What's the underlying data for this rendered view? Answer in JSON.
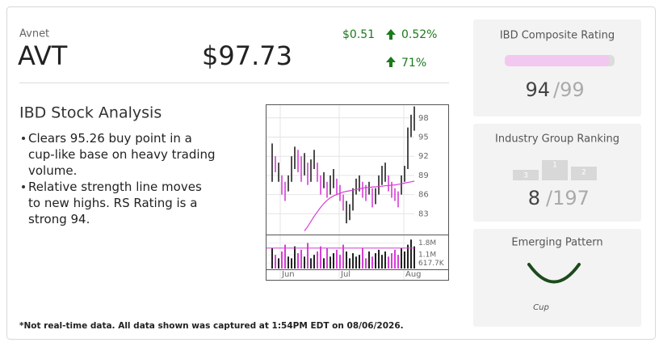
{
  "header": {
    "company": "Avnet",
    "ticker": "AVT",
    "price": "$97.73",
    "change": "$0.51",
    "change_pct": "0.52%",
    "second_pct": "71%"
  },
  "analysis": {
    "title": "IBD Stock Analysis",
    "bullets": [
      "Clears 95.26 buy point in a cup-like base on heavy trading volume.",
      "Relative strength line moves to new highs. RS Rating is a strong 94."
    ]
  },
  "footnote": "*Not real-time data. All data shown was captured at 1:54PM EDT on 08/06/2026.",
  "composite": {
    "title": "IBD Composite Rating",
    "rating": 94,
    "scale": {
      "value": 99,
      "label": "/99"
    }
  },
  "group": {
    "title": "Industry Group Ranking",
    "rank": 8,
    "scale": {
      "value": 197,
      "label": "/197"
    },
    "podium": [
      "3",
      "1",
      "2"
    ]
  },
  "pattern": {
    "title": "Emerging Pattern",
    "name": "Cup"
  },
  "chart_data": {
    "type": "price-volume",
    "up_color": "#222222",
    "down_color": "#d63fd6",
    "ma_color": "#d63fd6",
    "ylim": [
      80,
      100
    ],
    "yticks": [
      98,
      95,
      92,
      89,
      86,
      83
    ],
    "low": [
      88,
      89.5,
      88,
      86,
      85,
      86.5,
      88,
      90,
      89.5,
      88,
      89,
      87.5,
      88,
      90,
      88,
      86,
      87,
      85.5,
      86,
      87,
      86,
      85,
      83.5,
      81.5,
      82,
      83.5,
      86,
      86.5,
      85.5,
      85,
      86,
      84,
      84.5,
      86,
      87.5,
      88,
      86.5,
      85.5,
      85,
      84,
      86,
      88,
      90,
      95,
      96
    ],
    "high": [
      94,
      92,
      91,
      89,
      88,
      89,
      92,
      93.5,
      93,
      92,
      92.5,
      91,
      91.5,
      93,
      91,
      89,
      89.5,
      88,
      89,
      90,
      88.5,
      87.5,
      86,
      85,
      84.5,
      87,
      88.5,
      89,
      88,
      87.5,
      88,
      87,
      87,
      89,
      90.5,
      91,
      89,
      88,
      87,
      86.5,
      89,
      90.5,
      96.5,
      98.5,
      99.8
    ],
    "up": [
      true,
      false,
      true,
      false,
      false,
      true,
      true,
      true,
      false,
      false,
      true,
      false,
      true,
      true,
      false,
      false,
      true,
      false,
      true,
      true,
      false,
      false,
      false,
      true,
      true,
      true,
      true,
      true,
      false,
      false,
      true,
      false,
      true,
      true,
      true,
      true,
      false,
      false,
      false,
      false,
      true,
      true,
      true,
      true,
      true
    ],
    "ma": [
      null,
      null,
      null,
      null,
      null,
      null,
      null,
      null,
      null,
      null,
      80.3,
      81,
      81.8,
      82.6,
      83.3,
      84,
      84.6,
      85.1,
      85.5,
      85.8,
      86,
      86.2,
      86.4,
      86.5,
      86.6,
      86.7,
      86.8,
      86.9,
      87,
      87.1,
      87.1,
      87.2,
      87.2,
      87.3,
      87.3,
      87.4,
      87.4,
      87.5,
      87.5,
      87.6,
      87.7,
      87.8,
      87.9,
      88,
      88.1
    ],
    "volume_ylim": [
      300000,
      2200000
    ],
    "volume_ticks": [
      {
        "value": 1800000,
        "label": "1.8M"
      },
      {
        "value": 1100000,
        "label": "1.1M"
      },
      {
        "value": 617700,
        "label": "617.7K"
      }
    ],
    "volume": [
      1500000,
      1100000,
      900000,
      1300000,
      1700000,
      1000000,
      900000,
      1600000,
      1200000,
      1400000,
      1000000,
      1800000,
      900000,
      1100000,
      1300000,
      1600000,
      900000,
      1500000,
      1000000,
      1200000,
      1400000,
      1100000,
      1700000,
      1300000,
      900000,
      1200000,
      1000000,
      1100000,
      1500000,
      900000,
      1300000,
      1000000,
      1200000,
      1400000,
      1100000,
      1300000,
      1000000,
      1200000,
      1400000,
      1100000,
      1500000,
      1300000,
      1700000,
      2000000,
      1600000
    ],
    "avg_volume": 1500000,
    "month_ticks": [
      {
        "value": 2.5,
        "label": "Jun"
      },
      {
        "value": 20.75,
        "label": "Jul"
      },
      {
        "value": 40.75,
        "label": "Aug"
      }
    ]
  }
}
